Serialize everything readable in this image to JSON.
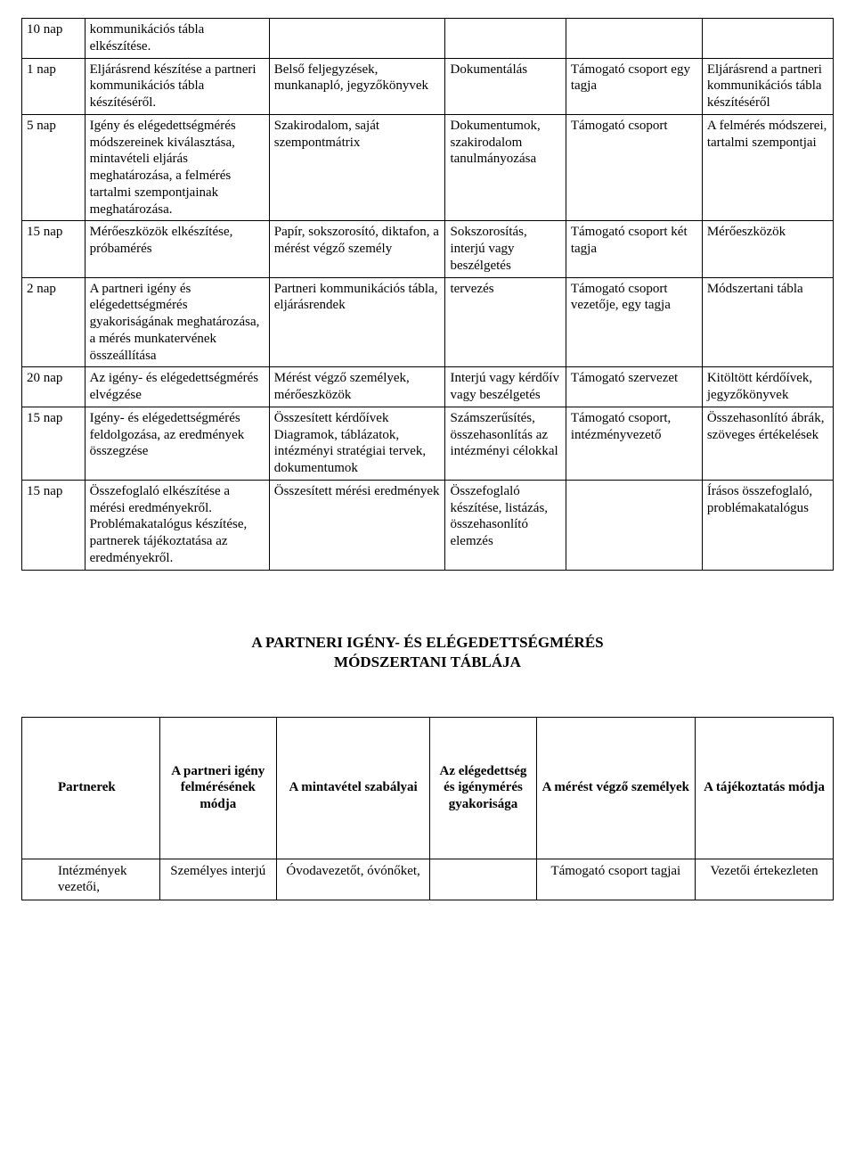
{
  "table1": {
    "rows": [
      {
        "c0": "10 nap",
        "c1": "kommunikációs tábla elkészítése.",
        "c2": "",
        "c3": "",
        "c4": "",
        "c5": ""
      },
      {
        "c0": "1 nap",
        "c1": "Eljárásrend készítése a partneri kommunikációs tábla készítéséről.",
        "c2": "Belső feljegyzések, munkanapló, jegyzőkönyvek",
        "c3": "Dokumentálás",
        "c4": "Támogató csoport egy tagja",
        "c5": "Eljárásrend a partneri kommunikációs tábla készítéséről"
      },
      {
        "c0": "5 nap",
        "c1": "Igény és elégedettségmérés módszereinek kiválasztása, mintavételi eljárás meghatározása, a felmérés tartalmi szempontjainak meghatározása.",
        "c2": "Szakirodalom, saját szempontmátrix",
        "c3": "Dokumentumok, szakirodalom tanulmányozása",
        "c4": "Támogató csoport",
        "c5": "A felmérés módszerei, tartalmi szempontjai"
      },
      {
        "c0": "15 nap",
        "c1": "Mérőeszközök elkészítése, próbamérés",
        "c2": "Papír, sokszorosító, diktafon, a mérést végző személy",
        "c3": "Sokszorosítás, interjú vagy beszélgetés",
        "c4": "Támogató csoport két tagja",
        "c5": "Mérőeszközök"
      },
      {
        "c0": "2 nap",
        "c1": "A partneri igény és elégedettségmérés gyakoriságának meghatározása, a mérés munkatervének összeállítása",
        "c2": "Partneri kommunikációs tábla, eljárásrendek",
        "c3": "tervezés",
        "c4": "Támogató csoport vezetője, egy tagja",
        "c5": "Módszertani tábla"
      },
      {
        "c0": "20 nap",
        "c1": "Az igény- és elégedettségmérés elvégzése",
        "c2": "Mérést végző személyek, mérőeszközök",
        "c3": "Interjú vagy kérdőív vagy beszélgetés",
        "c4": "Támogató szervezet",
        "c5": "Kitöltött kérdőívek, jegyzőkönyvek"
      },
      {
        "c0": "15 nap",
        "c1": "Igény- és elégedettségmérés feldolgozása, az eredmények összegzése",
        "c2": "Összesített kérdőívek Diagramok, táblázatok, intézményi stratégiai tervek, dokumentumok",
        "c3": "Számszerűsítés, összehasonlítás az intézményi célokkal",
        "c4": "Támogató csoport, intézményvezető",
        "c5": "Összehasonlító ábrák, szöveges értékelések"
      },
      {
        "c0": "15 nap",
        "c1": "Összefoglaló elkészítése a mérési eredményekről. Problémakatalógus készítése, partnerek tájékoztatása az eredményekről.",
        "c2": "Összesített mérési eredmények",
        "c3": "Összefoglaló készítése, listázás, összehasonlító elemzés",
        "c4": "",
        "c5": "Írásos összefoglaló, problémakatalógus"
      }
    ]
  },
  "title": {
    "line1": "A PARTNERI IGÉNY- ÉS ELÉGEDETTSÉGMÉRÉS",
    "line2": "MÓDSZERTANI TÁBLÁJA"
  },
  "table2": {
    "head": {
      "c0": "Partnerek",
      "c1": "A partneri igény felmérésének módja",
      "c2": "A mintavétel szabályai",
      "c3": "Az elégedettség és igénymérés gyakorisága",
      "c4": "A mérést végző személyek",
      "c5": "A tájékoztatás módja"
    },
    "row1": {
      "c0": "Intézmények vezetői,",
      "c1": "Személyes interjú",
      "c2": "Óvodavezetőt, óvónőket,",
      "c3": "",
      "c4": "Támogató csoport tagjai",
      "c5": "Vezetői értekezleten"
    }
  }
}
